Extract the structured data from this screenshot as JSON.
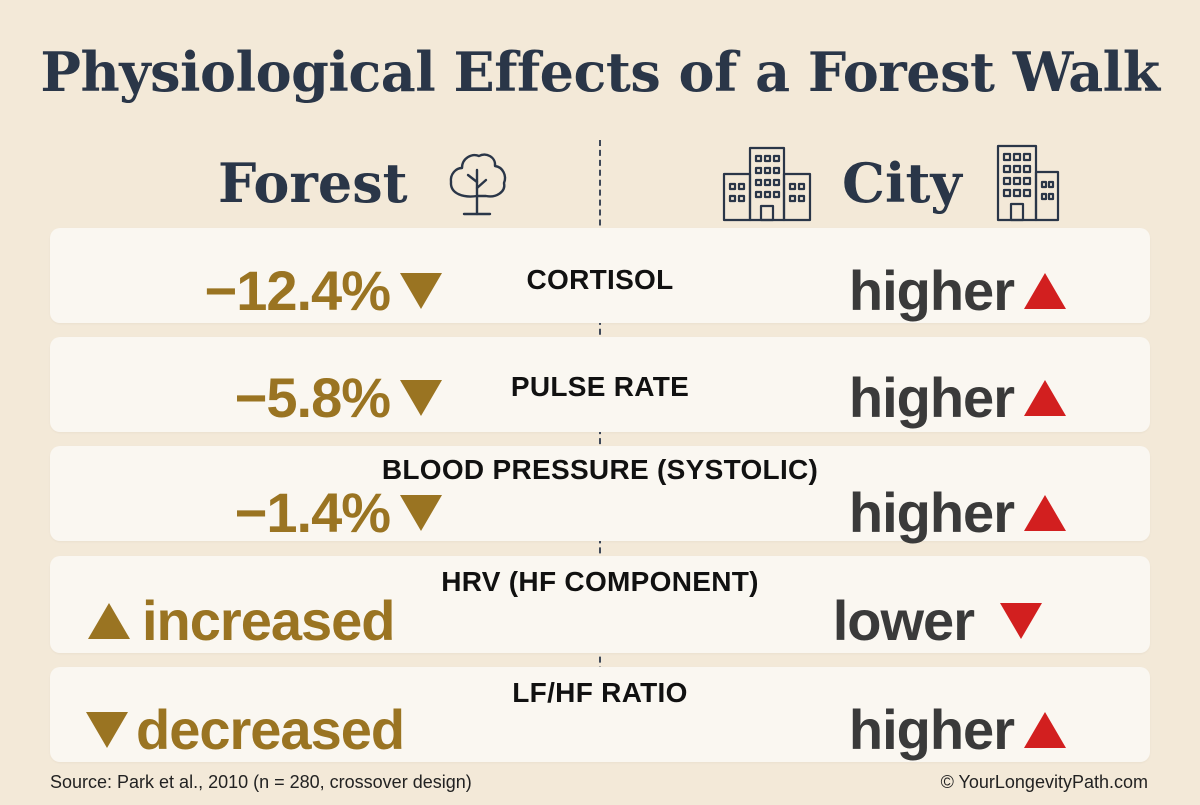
{
  "title": "Physiological Effects of a Forest Walk",
  "columns": {
    "forest": "Forest",
    "city": "City"
  },
  "icons": {
    "forest": "tree-icon",
    "city": "buildings-icon"
  },
  "colors": {
    "forest_value": "#9a7422",
    "city_value": "#3a3a3a",
    "up_alert": "#d21f1f",
    "heading": "#2a3648",
    "background": "#f3e9d8"
  },
  "rows": [
    {
      "metric": "CORTISOL",
      "forest": "−12.4%",
      "forest_trend": "down",
      "city": "higher",
      "city_trend": "up"
    },
    {
      "metric": "PULSE RATE",
      "forest": "−5.8%",
      "forest_trend": "down",
      "city": "higher",
      "city_trend": "up"
    },
    {
      "metric": "BLOOD PRESSURE (SYSTOLIC)",
      "forest": "−1.4%",
      "forest_trend": "down",
      "city": "higher",
      "city_trend": "up"
    },
    {
      "metric": "HRV (HF COMPONENT)",
      "forest": "increased",
      "forest_trend": "up",
      "city": "lower",
      "city_trend": "down"
    },
    {
      "metric": "LF/HF RATIO",
      "forest": "decreased",
      "forest_trend": "down",
      "city": "higher",
      "city_trend": "up"
    }
  ],
  "footer": {
    "source": "Source: Park et al., 2010 (n = 280, crossover design)",
    "credit": "© YourLongevityPath.com"
  }
}
